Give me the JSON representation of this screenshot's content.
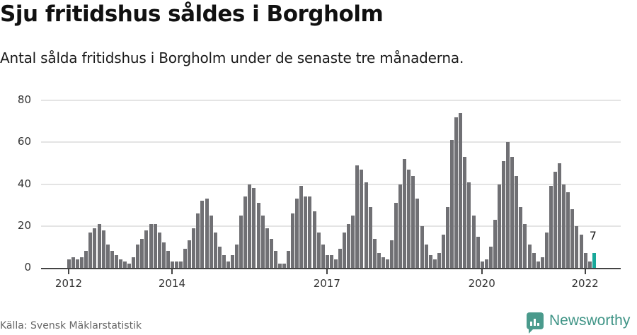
{
  "header": {
    "title": "Sju fritidshus såldes i Borgholm",
    "subtitle": "Antal sålda fritidshus i Borgholm under de senaste tre månaderna."
  },
  "footer": {
    "source": "Källa: Svensk Mäklarstatistik",
    "brand": "Newsworthy",
    "brand_icon": "bar-chart-speech-bubble-icon"
  },
  "colors": {
    "bar": "#707074",
    "highlight": "#18a89a",
    "grid": "#e4e4e4",
    "axis": "#444444",
    "brand": "#3f9486"
  },
  "chart_data": {
    "type": "bar",
    "title": "Sju fritidshus såldes i Borgholm",
    "subtitle": "Antal sålda fritidshus i Borgholm under de senaste tre månaderna.",
    "xlabel": "",
    "ylabel": "",
    "ylim": [
      0,
      80
    ],
    "yticks": [
      0,
      20,
      40,
      60,
      80
    ],
    "xtick_labels": [
      "2012",
      "2014",
      "2017",
      "2020",
      "2022"
    ],
    "xtick_index": [
      0,
      24,
      60,
      96,
      120
    ],
    "grid": true,
    "legend": null,
    "start": "2012-01",
    "end": "2022-03",
    "frequency": "monthly",
    "highlight_index": 122,
    "annotation": {
      "index": 122,
      "text": "7"
    },
    "values": [
      4,
      5,
      4,
      5,
      8,
      17,
      19,
      21,
      18,
      11,
      8,
      6,
      4,
      3,
      2,
      5,
      11,
      14,
      18,
      21,
      21,
      17,
      12,
      8,
      3,
      3,
      3,
      9,
      13,
      19,
      26,
      32,
      33,
      25,
      17,
      10,
      6,
      3,
      6,
      11,
      25,
      34,
      40,
      38,
      31,
      25,
      19,
      14,
      8,
      2,
      2,
      8,
      26,
      33,
      39,
      34,
      34,
      27,
      17,
      11,
      6,
      6,
      4,
      9,
      17,
      21,
      25,
      49,
      47,
      41,
      29,
      14,
      7,
      5,
      4,
      13,
      31,
      40,
      52,
      47,
      44,
      33,
      20,
      11,
      6,
      4,
      7,
      16,
      29,
      61,
      72,
      74,
      53,
      41,
      25,
      15,
      3,
      4,
      10,
      23,
      40,
      51,
      60,
      53,
      44,
      29,
      21,
      11,
      7,
      3,
      5,
      17,
      39,
      46,
      50,
      40,
      36,
      28,
      20,
      16,
      7,
      3,
      7
    ]
  }
}
